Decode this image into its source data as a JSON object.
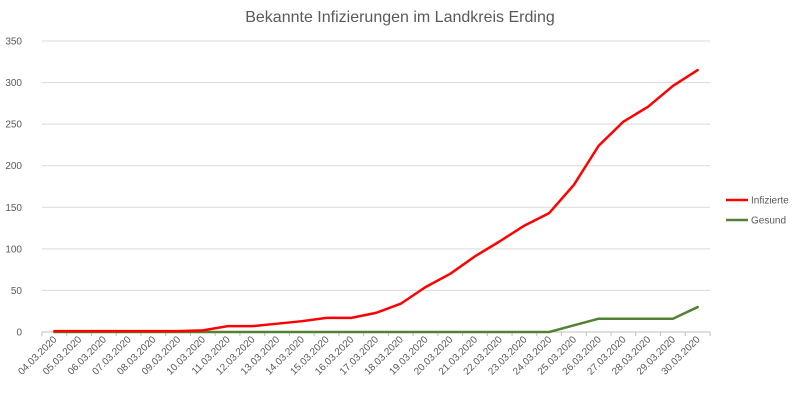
{
  "chart_data": {
    "type": "line",
    "title": "Bekannte Infizierungen im Landkreis Erding",
    "xlabel": "",
    "ylabel": "",
    "ylim": [
      0,
      350
    ],
    "yticks": [
      0,
      50,
      100,
      150,
      200,
      250,
      300,
      350
    ],
    "grid": true,
    "legend_position": "right",
    "categories": [
      "04.03.2020",
      "05.03.2020",
      "06.03.2020",
      "07.03.2020",
      "08.03.2020",
      "09.03.2020",
      "10.03.2020",
      "11.03.2020",
      "12.03.2020",
      "13.03.2020",
      "14.03.2020",
      "15.03.2020",
      "16.03.2020",
      "17.03.2020",
      "18.03.2020",
      "19.03.2020",
      "20.03.2020",
      "21.03.2020",
      "22.03.2020",
      "23.03.2020",
      "24.03.2020",
      "25.03.2020",
      "26.03.2020",
      "27.03.2020",
      "28.03.2020",
      "29.03.2020",
      "30.03.2020"
    ],
    "series": [
      {
        "name": "Infizierte",
        "color": "#ff0000",
        "values": [
          1,
          1,
          1,
          1,
          1,
          1,
          2,
          7,
          7,
          10,
          13,
          17,
          17,
          23,
          34,
          54,
          70,
          91,
          109,
          128,
          143,
          177,
          224,
          253,
          271,
          296,
          315
        ]
      },
      {
        "name": "Gesund",
        "color": "#548235",
        "values": [
          0,
          0,
          0,
          0,
          0,
          0,
          0,
          0,
          0,
          0,
          0,
          0,
          0,
          0,
          0,
          0,
          0,
          0,
          0,
          0,
          0,
          8,
          16,
          16,
          16,
          16,
          30
        ]
      }
    ]
  }
}
